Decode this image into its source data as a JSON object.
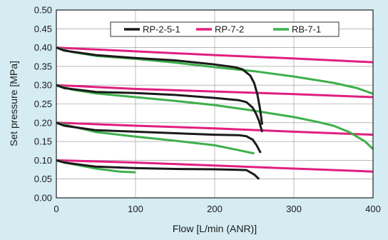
{
  "chart_data": {
    "type": "line",
    "xlabel": "Flow [L/min (ANR)]",
    "ylabel": "Set pressure [MPa]",
    "xlim": [
      0,
      400
    ],
    "ylim": [
      0,
      0.5
    ],
    "x_ticks": [
      "0",
      "100",
      "200",
      "300",
      "400"
    ],
    "y_ticks": [
      "0.00",
      "0.05",
      "0.10",
      "0.15",
      "0.20",
      "0.25",
      "0.30",
      "0.35",
      "0.40",
      "0.45",
      "0.50"
    ],
    "grid": true,
    "legend_position": "top-right",
    "series": [
      {
        "name": "RP-2-5-1",
        "color": "#1a1a1a",
        "curves": [
          [
            [
              0,
              0.4
            ],
            [
              10,
              0.392
            ],
            [
              50,
              0.38
            ],
            [
              100,
              0.372
            ],
            [
              150,
              0.366
            ],
            [
              200,
              0.355
            ],
            [
              225,
              0.348
            ],
            [
              235,
              0.342
            ],
            [
              245,
              0.325
            ],
            [
              250,
              0.305
            ],
            [
              254,
              0.275
            ],
            [
              257,
              0.24
            ],
            [
              260,
              0.195
            ]
          ],
          [
            [
              0,
              0.3
            ],
            [
              10,
              0.292
            ],
            [
              50,
              0.282
            ],
            [
              100,
              0.279
            ],
            [
              150,
              0.274
            ],
            [
              200,
              0.266
            ],
            [
              230,
              0.26
            ],
            [
              240,
              0.255
            ],
            [
              248,
              0.24
            ],
            [
              252,
              0.225
            ],
            [
              256,
              0.205
            ],
            [
              260,
              0.175
            ]
          ],
          [
            [
              0,
              0.2
            ],
            [
              10,
              0.192
            ],
            [
              50,
              0.18
            ],
            [
              100,
              0.176
            ],
            [
              150,
              0.172
            ],
            [
              200,
              0.168
            ],
            [
              230,
              0.167
            ],
            [
              240,
              0.164
            ],
            [
              248,
              0.155
            ],
            [
              253,
              0.14
            ],
            [
              258,
              0.12
            ]
          ],
          [
            [
              0,
              0.1
            ],
            [
              10,
              0.094
            ],
            [
              50,
              0.083
            ],
            [
              100,
              0.079
            ],
            [
              150,
              0.077
            ],
            [
              200,
              0.076
            ],
            [
              225,
              0.075
            ],
            [
              240,
              0.074
            ],
            [
              250,
              0.062
            ],
            [
              256,
              0.05
            ]
          ]
        ]
      },
      {
        "name": "RP-7-2",
        "color": "#e01f80",
        "curves": [
          [
            [
              0,
              0.4
            ],
            [
              100,
              0.39
            ],
            [
              200,
              0.38
            ],
            [
              300,
              0.371
            ],
            [
              400,
              0.361
            ]
          ],
          [
            [
              0,
              0.3
            ],
            [
              100,
              0.29
            ],
            [
              200,
              0.283
            ],
            [
              300,
              0.276
            ],
            [
              400,
              0.268
            ]
          ],
          [
            [
              0,
              0.2
            ],
            [
              100,
              0.192
            ],
            [
              200,
              0.185
            ],
            [
              300,
              0.176
            ],
            [
              400,
              0.168
            ]
          ],
          [
            [
              0,
              0.1
            ],
            [
              100,
              0.094
            ],
            [
              200,
              0.086
            ],
            [
              300,
              0.078
            ],
            [
              400,
              0.07
            ]
          ]
        ]
      },
      {
        "name": "RB-7-1",
        "color": "#3db04a",
        "curves": [
          [
            [
              0,
              0.4
            ],
            [
              20,
              0.388
            ],
            [
              50,
              0.378
            ],
            [
              100,
              0.37
            ],
            [
              150,
              0.36
            ],
            [
              200,
              0.348
            ],
            [
              250,
              0.337
            ],
            [
              300,
              0.323
            ],
            [
              350,
              0.306
            ],
            [
              380,
              0.292
            ],
            [
              400,
              0.277
            ]
          ],
          [
            [
              0,
              0.3
            ],
            [
              20,
              0.288
            ],
            [
              50,
              0.278
            ],
            [
              100,
              0.268
            ],
            [
              150,
              0.258
            ],
            [
              200,
              0.247
            ],
            [
              250,
              0.232
            ],
            [
              300,
              0.215
            ],
            [
              330,
              0.202
            ],
            [
              350,
              0.192
            ],
            [
              370,
              0.175
            ],
            [
              390,
              0.15
            ],
            [
              400,
              0.13
            ]
          ],
          [
            [
              0,
              0.2
            ],
            [
              20,
              0.19
            ],
            [
              50,
              0.175
            ],
            [
              100,
              0.163
            ],
            [
              150,
              0.152
            ],
            [
              200,
              0.14
            ],
            [
              230,
              0.127
            ],
            [
              250,
              0.118
            ]
          ],
          [
            [
              0,
              0.1
            ],
            [
              20,
              0.09
            ],
            [
              50,
              0.078
            ],
            [
              80,
              0.07
            ],
            [
              100,
              0.068
            ]
          ]
        ]
      }
    ]
  }
}
